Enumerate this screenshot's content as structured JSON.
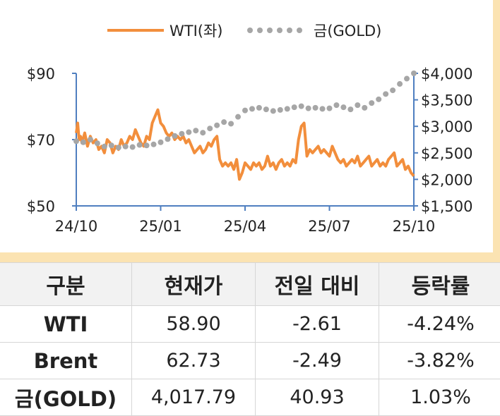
{
  "chart_data": {
    "type": "line",
    "legend": {
      "placement": "top-center",
      "items": [
        "WTI(좌)",
        "금(GOLD)"
      ]
    },
    "x_ticks": [
      "24/10",
      "25/01",
      "25/04",
      "25/07",
      "25/10"
    ],
    "y_left": {
      "ticks": [
        "$90",
        "$70",
        "$50"
      ],
      "range": [
        50,
        90
      ]
    },
    "y_right": {
      "ticks": [
        "$4,000",
        "$3,500",
        "$3,000",
        "$2,500",
        "$2,000",
        "$1,500"
      ],
      "range": [
        1500,
        4000
      ]
    },
    "x_range": [
      0,
      12
    ],
    "grid": false,
    "series": [
      {
        "name": "WTI(좌)",
        "axis": "left",
        "color": "#f28e3c",
        "style": "solid",
        "x": [
          0,
          0.05,
          0.1,
          0.15,
          0.2,
          0.3,
          0.4,
          0.5,
          0.6,
          0.7,
          0.8,
          0.9,
          1.0,
          1.1,
          1.2,
          1.3,
          1.4,
          1.5,
          1.6,
          1.7,
          1.8,
          1.9,
          2.0,
          2.1,
          2.2,
          2.3,
          2.4,
          2.5,
          2.6,
          2.7,
          2.8,
          2.9,
          3.0,
          3.1,
          3.2,
          3.3,
          3.4,
          3.5,
          3.6,
          3.7,
          3.8,
          3.9,
          4.0,
          4.1,
          4.2,
          4.3,
          4.4,
          4.5,
          4.6,
          4.7,
          4.8,
          4.9,
          5.0,
          5.1,
          5.2,
          5.3,
          5.4,
          5.5,
          5.6,
          5.7,
          5.8,
          5.9,
          6.0,
          6.1,
          6.2,
          6.3,
          6.4,
          6.5,
          6.6,
          6.7,
          6.8,
          6.9,
          7.0,
          7.1,
          7.2,
          7.3,
          7.4,
          7.5,
          7.6,
          7.7,
          7.8,
          7.9,
          8.0,
          8.1,
          8.2,
          8.3,
          8.4,
          8.5,
          8.6,
          8.7,
          8.8,
          8.9,
          9.0,
          9.1,
          9.2,
          9.3,
          9.4,
          9.5,
          9.6,
          9.7,
          9.8,
          9.9,
          10.0,
          10.1,
          10.2,
          10.3,
          10.4,
          10.5,
          10.6,
          10.7,
          10.8,
          10.9,
          11.0,
          11.1,
          11.2,
          11.3,
          11.4,
          11.5,
          11.6,
          11.7,
          11.8,
          11.9,
          12.0
        ],
        "values": [
          72,
          75,
          70,
          71,
          69,
          72,
          68,
          71,
          69,
          70,
          67,
          68,
          66,
          70,
          69,
          66,
          68,
          67,
          70,
          68,
          69,
          71,
          70,
          73,
          71,
          69,
          68,
          71,
          70,
          75,
          77,
          79,
          75,
          74,
          72,
          71,
          72,
          70,
          71,
          70,
          71,
          69,
          70,
          68,
          66,
          67,
          68,
          66,
          67,
          69,
          68,
          70,
          71,
          64,
          62,
          63,
          62,
          63,
          61,
          64,
          58,
          60,
          63,
          62,
          61,
          63,
          62,
          63,
          61,
          62,
          65,
          62,
          63,
          61,
          63,
          64,
          62,
          63,
          62,
          64,
          63,
          70,
          74,
          75,
          65,
          67,
          66,
          67,
          68,
          66,
          67,
          66,
          65,
          68,
          66,
          64,
          63,
          64,
          62,
          63,
          64,
          63,
          65,
          62,
          63,
          64,
          65,
          62,
          63,
          64,
          62,
          63,
          62,
          64,
          65,
          66,
          62,
          63,
          64,
          61,
          62,
          60,
          59
        ],
        "end_label": null
      },
      {
        "name": "금(GOLD)",
        "axis": "right",
        "color": "#a6a6a6",
        "style": "dotted",
        "x": [
          0,
          0.25,
          0.5,
          0.75,
          1.0,
          1.25,
          1.5,
          1.75,
          2.0,
          2.25,
          2.5,
          2.75,
          3.0,
          3.25,
          3.5,
          3.75,
          4.0,
          4.25,
          4.5,
          4.75,
          5.0,
          5.25,
          5.5,
          5.75,
          6.0,
          6.25,
          6.5,
          6.75,
          7.0,
          7.25,
          7.5,
          7.75,
          8.0,
          8.25,
          8.5,
          8.75,
          9.0,
          9.25,
          9.5,
          9.75,
          10.0,
          10.25,
          10.5,
          10.75,
          11.0,
          11.25,
          11.5,
          11.75,
          12.0
        ],
        "values": [
          2720,
          2700,
          2750,
          2680,
          2620,
          2640,
          2600,
          2620,
          2610,
          2650,
          2640,
          2660,
          2700,
          2760,
          2820,
          2860,
          2890,
          2920,
          2880,
          2960,
          3020,
          3080,
          3050,
          3180,
          3300,
          3330,
          3350,
          3320,
          3290,
          3310,
          3330,
          3360,
          3380,
          3340,
          3350,
          3330,
          3340,
          3400,
          3360,
          3320,
          3400,
          3350,
          3440,
          3510,
          3610,
          3680,
          3800,
          3900,
          4000
        ]
      }
    ]
  },
  "table": {
    "headers": [
      "구분",
      "현재가",
      "전일 대비",
      "등락률"
    ],
    "rows": [
      [
        "WTI",
        "58.90",
        "-2.61",
        "-4.24%"
      ],
      [
        "Brent",
        "62.73",
        "-2.49",
        "-3.82%"
      ],
      [
        "금(GOLD)",
        "4,017.79",
        "40.93",
        "1.03%"
      ]
    ]
  }
}
